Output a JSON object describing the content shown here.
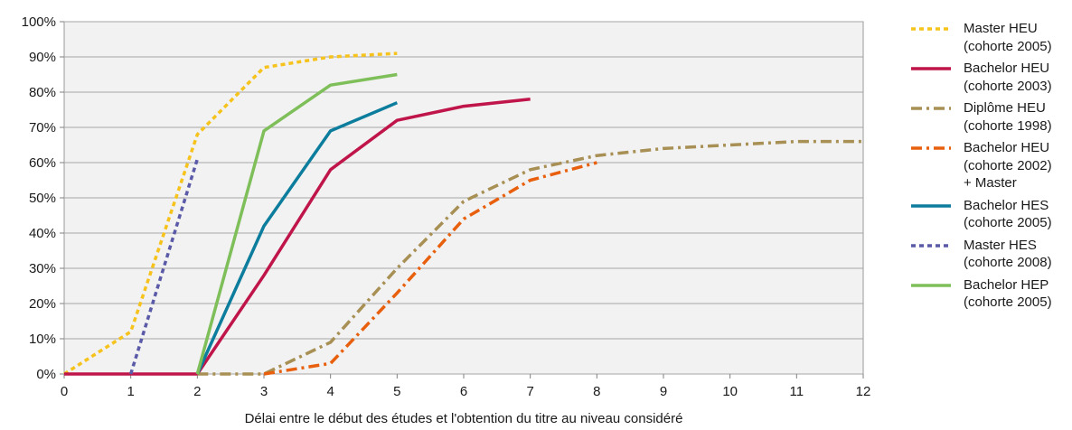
{
  "chart_data": {
    "type": "line",
    "xlabel": "Délai entre le début des études et l'obtention du titre au niveau considéré",
    "ylabel": "",
    "xlim": [
      0,
      12
    ],
    "ylim": [
      0,
      100
    ],
    "x_ticks": [
      0,
      1,
      2,
      3,
      4,
      5,
      6,
      7,
      8,
      9,
      10,
      11,
      12
    ],
    "y_ticks": [
      "0%",
      "10%",
      "20%",
      "30%",
      "40%",
      "50%",
      "60%",
      "70%",
      "80%",
      "90%",
      "100%"
    ],
    "grid": "horizontal",
    "legend_position": "right",
    "plot_background": "#f2f2f2",
    "series": [
      {
        "name": "Master HEU\n(cohorte 2005)",
        "color": "#f6c31c",
        "dash": "dotted",
        "points": [
          [
            0,
            0
          ],
          [
            1,
            12
          ],
          [
            2,
            68
          ],
          [
            3,
            87
          ],
          [
            4,
            90
          ],
          [
            5,
            91
          ]
        ]
      },
      {
        "name": "Bachelor HEU\n(cohorte 2003)",
        "color": "#c0154a",
        "dash": "solid",
        "points": [
          [
            0,
            0
          ],
          [
            2,
            0
          ],
          [
            3,
            28
          ],
          [
            4,
            58
          ],
          [
            5,
            72
          ],
          [
            6,
            76
          ],
          [
            7,
            78
          ]
        ]
      },
      {
        "name": "Diplôme HEU\n(cohorte 1998)",
        "color": "#a89055",
        "dash": "dashdot",
        "points": [
          [
            2,
            0
          ],
          [
            3,
            0
          ],
          [
            4,
            9
          ],
          [
            5,
            30
          ],
          [
            6,
            49
          ],
          [
            7,
            58
          ],
          [
            8,
            62
          ],
          [
            9,
            64
          ],
          [
            10,
            65
          ],
          [
            11,
            66
          ],
          [
            12,
            66
          ]
        ]
      },
      {
        "name": "Bachelor HEU\n(cohorte 2002)\n+ Master",
        "color": "#e8600e",
        "dash": "dashdot",
        "points": [
          [
            3,
            0
          ],
          [
            4,
            3
          ],
          [
            5,
            23
          ],
          [
            6,
            44
          ],
          [
            7,
            55
          ],
          [
            8,
            60
          ]
        ]
      },
      {
        "name": "Bachelor HES\n(cohorte 2005)",
        "color": "#0c7d9c",
        "dash": "solid",
        "points": [
          [
            2,
            0
          ],
          [
            3,
            42
          ],
          [
            4,
            69
          ],
          [
            5,
            77
          ]
        ]
      },
      {
        "name": "Master HES\n(cohorte 2008)",
        "color": "#5a5aa8",
        "dash": "dotted",
        "points": [
          [
            1,
            0
          ],
          [
            2,
            61
          ]
        ]
      },
      {
        "name": "Bachelor HEP\n(cohorte 2005)",
        "color": "#7fbf5a",
        "dash": "solid",
        "points": [
          [
            2,
            0
          ],
          [
            3,
            69
          ],
          [
            4,
            82
          ],
          [
            5,
            85
          ]
        ]
      }
    ]
  }
}
